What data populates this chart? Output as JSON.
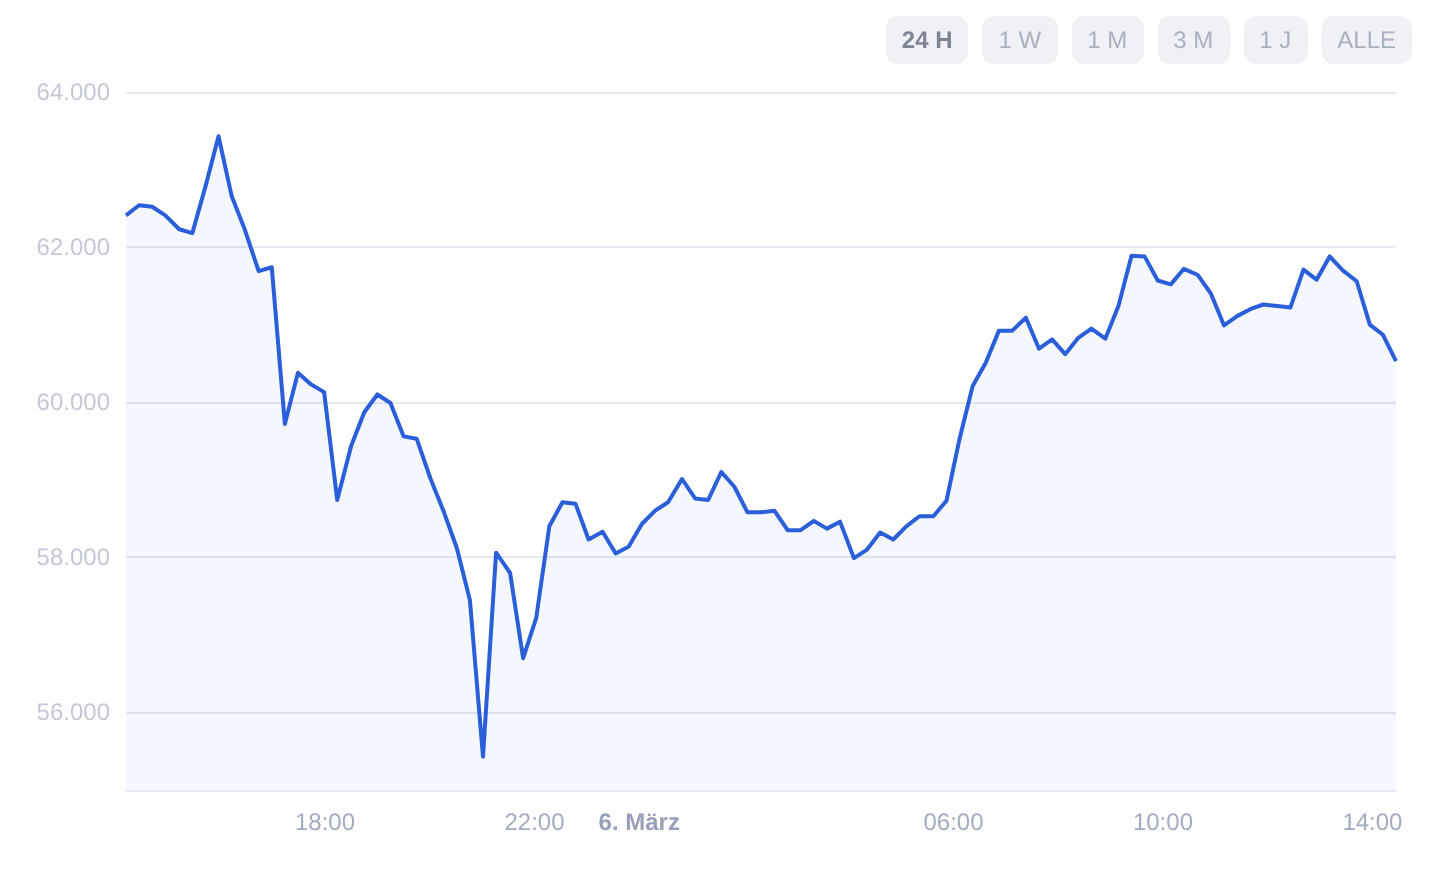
{
  "chart_data": {
    "type": "area",
    "annotations": [
      "24 H",
      "1 W",
      "1 M",
      "3 M",
      "1 J",
      "ALLE"
    ],
    "x": [
      "--03-05T14:12",
      "--03-05T14:27",
      "--03-05T14:42",
      "--03-05T14:57",
      "--03-05T15:13",
      "--03-05T15:28",
      "--03-05T15:43",
      "--03-05T15:58",
      "--03-05T16:13",
      "--03-05T16:28",
      "--03-05T16:44",
      "--03-05T16:59",
      "--03-05T17:14",
      "--03-05T17:29",
      "--03-05T17:44",
      "--03-05T17:59",
      "--03-05T18:14",
      "--03-05T18:30",
      "--03-05T18:45",
      "--03-05T19:00",
      "--03-05T19:15",
      "--03-05T19:30",
      "--03-05T19:45",
      "--03-05T20:01",
      "--03-05T20:16",
      "--03-05T20:31",
      "--03-05T20:46",
      "--03-05T21:01",
      "--03-05T21:16",
      "--03-05T21:32",
      "--03-05T21:47",
      "--03-05T22:02",
      "--03-05T22:17",
      "--03-05T22:32",
      "--03-05T22:47",
      "--03-05T23:02",
      "--03-05T23:18",
      "--03-05T23:33",
      "--03-05T23:48",
      "--03-06T00:03",
      "--03-06T00:18",
      "--03-06T00:33",
      "--03-06T00:49",
      "--03-06T01:04",
      "--03-06T01:19",
      "--03-06T01:34",
      "--03-06T01:49",
      "--03-06T02:04",
      "--03-06T02:19",
      "--03-06T02:35",
      "--03-06T02:50",
      "--03-06T03:05",
      "--03-06T03:20",
      "--03-06T03:35",
      "--03-06T03:50",
      "--03-06T04:06",
      "--03-06T04:21",
      "--03-06T04:36",
      "--03-06T04:51",
      "--03-06T05:06",
      "--03-06T05:21",
      "--03-06T05:37",
      "--03-06T05:52",
      "--03-06T06:07",
      "--03-06T06:22",
      "--03-06T06:37",
      "--03-06T06:52",
      "--03-06T07:07",
      "--03-06T07:23",
      "--03-06T07:38",
      "--03-06T07:53",
      "--03-06T08:08",
      "--03-06T08:23",
      "--03-06T08:38",
      "--03-06T08:54",
      "--03-06T09:09",
      "--03-06T09:24",
      "--03-06T09:39",
      "--03-06T09:54",
      "--03-06T10:09",
      "--03-06T10:24",
      "--03-06T10:40",
      "--03-06T10:55",
      "--03-06T11:10",
      "--03-06T11:25",
      "--03-06T11:40",
      "--03-06T11:55",
      "--03-06T12:11",
      "--03-06T12:26",
      "--03-06T12:41",
      "--03-06T12:56",
      "--03-06T13:11",
      "--03-06T13:26",
      "--03-06T13:42",
      "--03-06T13:57",
      "--03-06T14:12",
      "--03-06T14:27"
    ],
    "series": [
      {
        "color": "#2b5fd9",
        "values": [
          62410,
          62540,
          62520,
          62410,
          62230,
          62180,
          62780,
          63430,
          62660,
          62230,
          61690,
          61740,
          59720,
          60380,
          60230,
          60130,
          58740,
          59440,
          59870,
          60100,
          59990,
          59560,
          59530,
          59010,
          58590,
          58120,
          57450,
          55430,
          58060,
          57800,
          56700,
          57220,
          58400,
          58710,
          58690,
          58230,
          58330,
          58050,
          58140,
          58430,
          58600,
          58710,
          59010,
          58760,
          58740,
          59100,
          58910,
          58580,
          58580,
          58600,
          58350,
          58350,
          58470,
          58370,
          58460,
          57990,
          58100,
          58320,
          58230,
          58400,
          58530,
          58530,
          58730,
          59530,
          60210,
          60510,
          60920,
          60920,
          61090,
          60690,
          60810,
          60620,
          60830,
          60950,
          60820,
          61240,
          61890,
          61880,
          61570,
          61520,
          61720,
          61640,
          61400,
          60990,
          61110,
          61200,
          61260,
          61240,
          61220,
          61710,
          61580,
          61880,
          61700,
          61560,
          61000,
          60870,
          60530
        ]
      }
    ],
    "xlim": [
      "--03-05T14:12",
      "--03-06T14:27"
    ],
    "xticks": [
      {
        "value": "--03-05T18:00",
        "label": "18:00"
      },
      {
        "value": "--03-05T22:00",
        "label": "22:00"
      },
      {
        "value": "--03-06T00:00",
        "label": "6. März"
      },
      {
        "value": "--03-06T06:00",
        "label": "06:00"
      },
      {
        "value": "--03-06T10:00",
        "label": "10:00"
      },
      {
        "value": "--03-06T14:00",
        "label": "14:00"
      }
    ],
    "ylim": [
      55000,
      64000
    ],
    "yticks": [
      {
        "value": 56000,
        "label": "56.000"
      },
      {
        "value": 58000,
        "label": "58.000"
      },
      {
        "value": 60000,
        "label": "60.000"
      },
      {
        "value": 62000,
        "label": "62.000"
      },
      {
        "value": 64000,
        "label": "64.000"
      }
    ],
    "grid": "y",
    "marker": "none",
    "line_style": "solid"
  }
}
